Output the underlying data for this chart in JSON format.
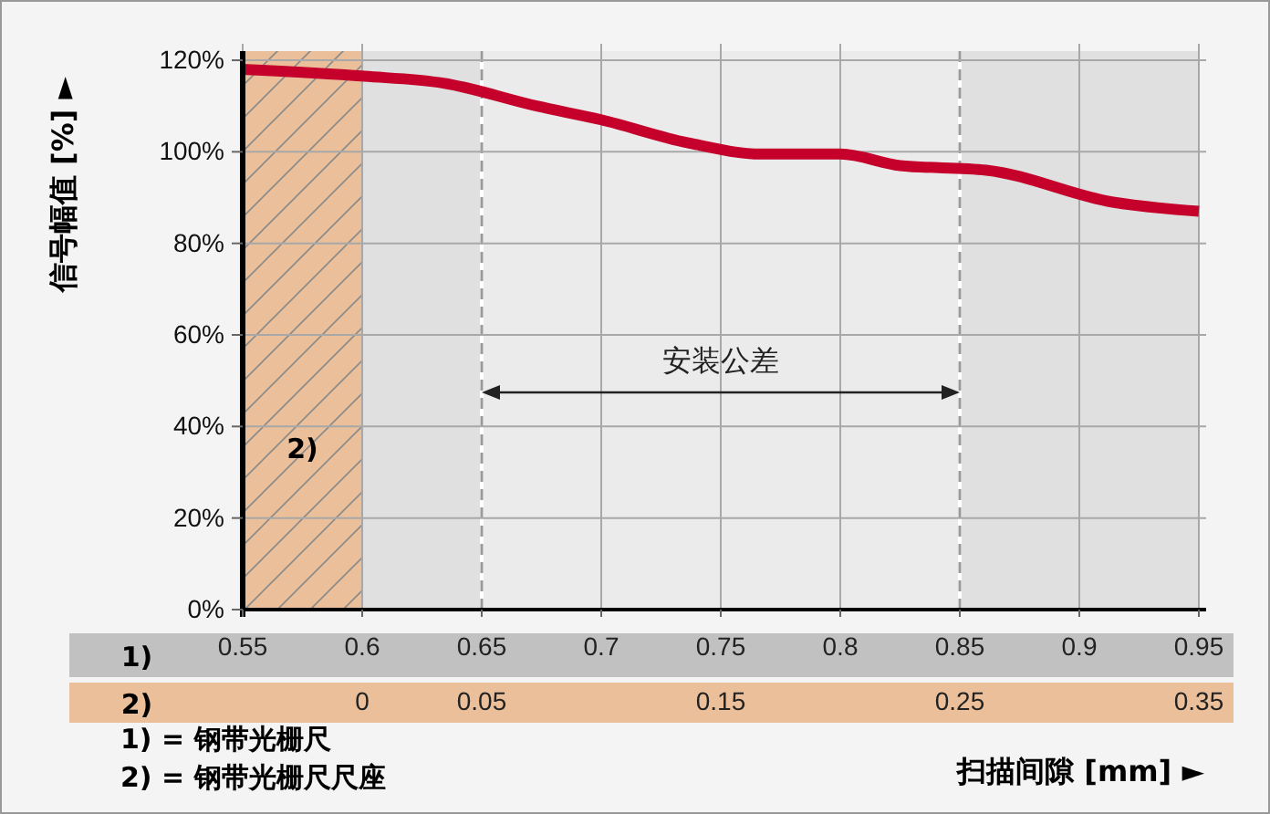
{
  "chart_data": {
    "type": "line",
    "x": [
      0.55,
      0.601,
      0.634,
      0.673,
      0.7,
      0.736,
      0.767,
      0.8,
      0.825,
      0.861,
      0.914,
      0.95
    ],
    "series": [
      {
        "color": "#c4002b",
        "values": [
          118,
          116.5,
          115,
          110,
          107,
          102,
          99.5,
          99.5,
          97,
          96,
          89,
          87
        ]
      }
    ],
    "xlim": [
      0.55,
      0.95
    ],
    "xticks": [
      0.55,
      0.6,
      0.65,
      0.7,
      0.75,
      0.8,
      0.85,
      0.9,
      0.95
    ],
    "x2lim": [
      -0.05,
      0.35
    ],
    "x2ticks": [
      0,
      0.05,
      0.15,
      0.25,
      0.35
    ],
    "x2label": "2)",
    "ylim": [
      0,
      122
    ],
    "yticks": [
      {
        "value": 0,
        "label": "0%"
      },
      {
        "value": 20,
        "label": "20%"
      },
      {
        "value": 40,
        "label": "40%"
      },
      {
        "value": 60,
        "label": "60%"
      },
      {
        "value": 80,
        "label": "80%"
      },
      {
        "value": 100,
        "label": "100%"
      },
      {
        "value": 120,
        "label": "120%"
      }
    ],
    "xlabel": "扫描间隙 [mm] ►",
    "ylabel": "信号幅值 [%] ►",
    "grid": true,
    "marker": "none",
    "line_style": "solid",
    "bands": [
      {
        "axis": "x",
        "from": 0.55,
        "to": 0.6,
        "label": "2)",
        "color": "#eabf99"
      },
      {
        "axis": "x",
        "from": 0.6,
        "to": 0.65,
        "color": "#e0e0e0"
      },
      {
        "axis": "x",
        "from": 0.85,
        "to": 0.95,
        "color": "#e0e0e0"
      }
    ],
    "annotations": [
      "安装公差",
      "1)",
      "1) = 钢带光栅尺",
      "2) = 钢带光栅尺尺座"
    ]
  }
}
